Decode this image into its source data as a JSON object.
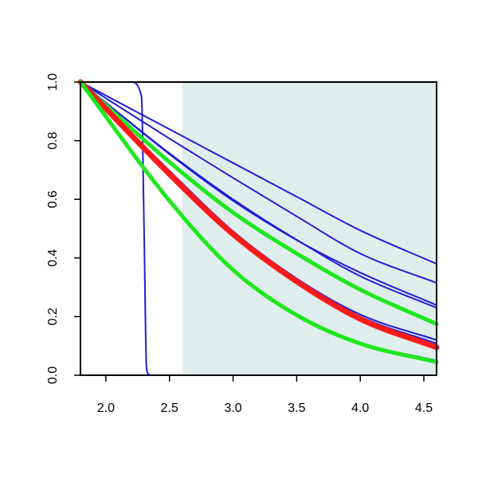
{
  "chart_data": {
    "type": "line",
    "title": "",
    "xlabel": "",
    "ylabel": "",
    "xlim": [
      1.8,
      4.6
    ],
    "ylim": [
      0.0,
      1.0
    ],
    "x_ticks": [
      "2.0",
      "2.5",
      "3.0",
      "3.5",
      "4.0",
      "4.5"
    ],
    "y_ticks": [
      "0.0",
      "0.2",
      "0.4",
      "0.6",
      "0.8",
      "1.0"
    ],
    "grid": false,
    "shaded_region": {
      "x_start": 2.6,
      "x_end": 4.6,
      "color": "#e0eded"
    },
    "colors": {
      "blue": "#1f1fd6",
      "red": "#ff1a1a",
      "green": "#1ee81e"
    },
    "series": [
      {
        "color": "blue",
        "x": [
          1.8,
          2.2,
          2.28,
          2.3,
          2.32,
          2.35,
          4.6
        ],
        "values": [
          1.0,
          1.0,
          0.95,
          0.5,
          0.02,
          0.0,
          0.0
        ]
      },
      {
        "color": "blue",
        "x": [
          1.8,
          2.5,
          3.0,
          3.5,
          4.0,
          4.6
        ],
        "values": [
          1.0,
          0.839,
          0.724,
          0.609,
          0.494,
          0.38
        ]
      },
      {
        "color": "blue",
        "x": [
          1.8,
          2.5,
          3.0,
          3.5,
          4.0,
          4.6
        ],
        "values": [
          1.0,
          0.807,
          0.673,
          0.542,
          0.415,
          0.315
        ]
      },
      {
        "color": "blue",
        "x": [
          1.8,
          2.5,
          3.0,
          3.5,
          4.0,
          4.6
        ],
        "values": [
          1.0,
          0.754,
          0.595,
          0.461,
          0.35,
          0.239
        ]
      },
      {
        "color": "blue",
        "x": [
          1.8,
          2.5,
          3.0,
          3.5,
          4.0,
          4.6
        ],
        "values": [
          1.0,
          0.757,
          0.6,
          0.462,
          0.338,
          0.23
        ]
      },
      {
        "color": "blue",
        "x": [
          1.8,
          2.5,
          3.0,
          3.5,
          4.0,
          4.6
        ],
        "values": [
          1.0,
          0.697,
          0.491,
          0.33,
          0.207,
          0.12
        ]
      },
      {
        "color": "blue",
        "x": [
          1.8,
          2.5,
          3.0,
          3.5,
          4.0,
          4.6
        ],
        "values": [
          1.0,
          0.697,
          0.49,
          0.325,
          0.2,
          0.108
        ]
      },
      {
        "color": "blue",
        "x": [
          1.8,
          2.5,
          3.0,
          3.5,
          4.0,
          4.6
        ],
        "values": [
          1.0,
          0.595,
          0.359,
          0.205,
          0.111,
          0.05
        ]
      },
      {
        "color": "green",
        "x": [
          1.8,
          2.5,
          3.0,
          3.5,
          4.0,
          4.6
        ],
        "values": [
          1.0,
          0.727,
          0.555,
          0.415,
          0.292,
          0.175
        ]
      },
      {
        "color": "red",
        "x": [
          1.8,
          2.5,
          3.0,
          3.5,
          4.0,
          4.6
        ],
        "values": [
          1.0,
          0.686,
          0.481,
          0.32,
          0.192,
          0.095
        ]
      },
      {
        "color": "green",
        "x": [
          1.8,
          2.5,
          3.0,
          3.5,
          4.0,
          4.6
        ],
        "values": [
          1.0,
          0.595,
          0.359,
          0.205,
          0.108,
          0.045
        ]
      }
    ]
  }
}
